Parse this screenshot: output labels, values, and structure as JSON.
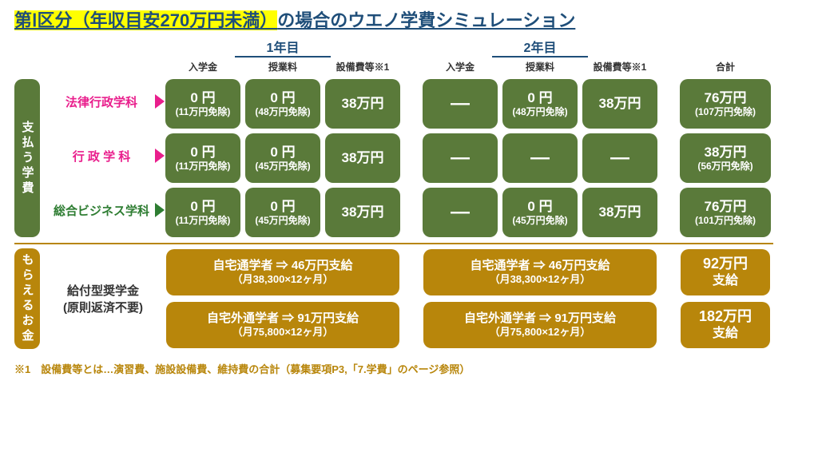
{
  "colors": {
    "green": "#5a7a3a",
    "gold": "#b8860b",
    "magenta": "#e91e8c",
    "greenText": "#2e7d32",
    "titleBlue": "#1f4e79"
  },
  "title_html": "<span class='title-hl'>第Ⅰ区分（年収目安270万円未満）</span>の場合のウエノ学費シミュレーション",
  "years": {
    "y1": "1年目",
    "y2": "2年目"
  },
  "subheaders": {
    "nyugaku": "入学金",
    "jugyo": "授業料",
    "setsubi": "設備費等※1",
    "gokei": "合計"
  },
  "side": {
    "pay": "支払う学費",
    "receive": "もらえるお金"
  },
  "depts": [
    {
      "name": "法律行政学科",
      "color": "#e91e8c",
      "cells": [
        {
          "main": "0 円",
          "sub": "(11万円免除)"
        },
        {
          "main": "0 円",
          "sub": "(48万円免除)"
        },
        {
          "main": "38万円"
        },
        {
          "dash": true
        },
        {
          "main": "0 円",
          "sub": "(48万円免除)"
        },
        {
          "main": "38万円"
        },
        {
          "main": "76万円",
          "sub": "(107万円免除)"
        }
      ]
    },
    {
      "name": "行 政 学 科",
      "color": "#e91e8c",
      "cells": [
        {
          "main": "0 円",
          "sub": "(11万円免除)"
        },
        {
          "main": "0 円",
          "sub": "(45万円免除)"
        },
        {
          "main": "38万円"
        },
        {
          "dash": true
        },
        {
          "dash": true
        },
        {
          "dash": true
        },
        {
          "main": "38万円",
          "sub": "(56万円免除)"
        }
      ]
    },
    {
      "name": "総合ビジネス学科",
      "color": "#2e7d32",
      "cells": [
        {
          "main": "0 円",
          "sub": "(11万円免除)"
        },
        {
          "main": "0 円",
          "sub": "(45万円免除)"
        },
        {
          "main": "38万円"
        },
        {
          "dash": true
        },
        {
          "main": "0 円",
          "sub": "(45万円免除)"
        },
        {
          "main": "38万円"
        },
        {
          "main": "76万円",
          "sub": "(101万円免除)"
        }
      ]
    }
  ],
  "scholarship": {
    "label1": "給付型奨学金",
    "label2": "(原則返済不要)",
    "rows": [
      {
        "y1": {
          "main": "自宅通学者 ⇒ 46万円支給",
          "sub": "（月38,300×12ヶ月）"
        },
        "y2": {
          "main": "自宅通学者 ⇒ 46万円支給",
          "sub": "（月38,300×12ヶ月）"
        },
        "total": {
          "main": "92万円",
          "sub": "支給"
        }
      },
      {
        "y1": {
          "main": "自宅外通学者 ⇒ 91万円支給",
          "sub": "（月75,800×12ヶ月）"
        },
        "y2": {
          "main": "自宅外通学者 ⇒ 91万円支給",
          "sub": "（月75,800×12ヶ月）"
        },
        "total": {
          "main": "182万円",
          "sub": "支給"
        }
      }
    ]
  },
  "footnote": "※1　設備費等とは…演習費、施設設備費、維持費の合計（募集要項P3,「7.学費」のページ参照）"
}
